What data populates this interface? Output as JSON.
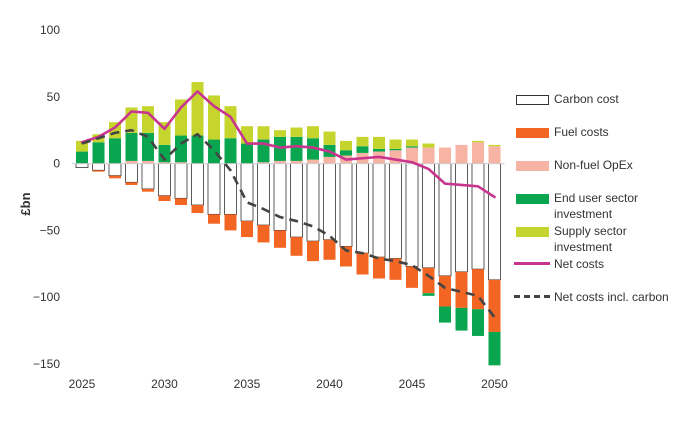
{
  "chart_data": {
    "type": "bar",
    "stacked": true,
    "ylabel": "£bn",
    "ylim": [
      -150,
      100
    ],
    "yticks": [
      100,
      50,
      0,
      -50,
      -100,
      -150
    ],
    "yticklabels": [
      "100",
      "50",
      "0",
      "−50",
      "−100",
      "−150"
    ],
    "xticks": [
      2025,
      2030,
      2035,
      2040,
      2045,
      2050
    ],
    "xticklabels": [
      "2025",
      "2030",
      "2035",
      "2040",
      "2045",
      "2050"
    ],
    "x": [
      2025,
      2026,
      2027,
      2028,
      2029,
      2030,
      2031,
      2032,
      2033,
      2034,
      2035,
      2036,
      2037,
      2038,
      2039,
      2040,
      2041,
      2042,
      2043,
      2044,
      2045,
      2046,
      2047,
      2048,
      2049,
      2050
    ],
    "grid": false,
    "legend_position": "right",
    "series": [
      {
        "name": "Carbon cost",
        "kind": "bar",
        "color": "#ffffff",
        "stroke": "#333333",
        "values": [
          -3,
          -5,
          -9,
          -14,
          -19,
          -24,
          -26,
          -31,
          -38,
          -38,
          -43,
          -46,
          -50,
          -55,
          -58,
          -57,
          -62,
          -67,
          -70,
          -71,
          -77,
          -78,
          -84,
          -81,
          -79,
          -87
        ]
      },
      {
        "name": "Fuel costs",
        "kind": "bar",
        "color": "#f26522",
        "values": [
          0,
          -1,
          -2,
          -2,
          -2,
          -4,
          -5,
          -6,
          -7,
          -12,
          -12,
          -13,
          -13,
          -14,
          -15,
          -15,
          -15,
          -16,
          -16,
          -16,
          -16,
          -19,
          -23,
          -27,
          -30,
          -39
        ]
      },
      {
        "name": "Non-fuel OpEx",
        "kind": "bar",
        "color": "#f7b3a3",
        "values": [
          0,
          0,
          0,
          2,
          2,
          1,
          1,
          0,
          0,
          0,
          0,
          1,
          2,
          2,
          3,
          5,
          6,
          8,
          9,
          10,
          12,
          12,
          12,
          14,
          16,
          13
        ]
      },
      {
        "name": "End user sector investment",
        "kind": "bar",
        "color": "#0aa54f",
        "values": [
          9,
          16,
          19,
          21,
          21,
          13,
          20,
          21,
          18,
          19,
          15,
          17,
          18,
          18,
          16,
          9,
          4,
          5,
          2,
          1,
          1,
          -2,
          -12,
          -17,
          -20,
          -25
        ]
      },
      {
        "name": "Supply sector investment",
        "kind": "bar",
        "color": "#c5d52e",
        "values": [
          8,
          6,
          12,
          19,
          20,
          17,
          27,
          40,
          33,
          24,
          13,
          10,
          5,
          7,
          9,
          10,
          7,
          7,
          9,
          7,
          5,
          3,
          0,
          0,
          1,
          1
        ]
      },
      {
        "name": "Net costs",
        "kind": "line",
        "color": "#c8358e",
        "values": [
          16,
          20,
          27,
          39,
          38,
          26,
          42,
          54,
          43,
          35,
          15,
          15,
          12,
          13,
          12,
          9,
          3,
          4,
          5,
          3,
          1,
          -4,
          -15,
          -16,
          -17,
          -25
        ]
      },
      {
        "name": "Net costs incl. carbon",
        "kind": "line",
        "dashed": true,
        "color": "#444444",
        "values": [
          15,
          19,
          23,
          25,
          20,
          3,
          15,
          22,
          10,
          -5,
          -29,
          -34,
          -40,
          -43,
          -47,
          -54,
          -65,
          -67,
          -71,
          -73,
          -76,
          -84,
          -93,
          -96,
          -99,
          -115
        ]
      }
    ]
  },
  "legend": {
    "items": [
      {
        "label": "Carbon cost"
      },
      {
        "label": "Fuel costs"
      },
      {
        "label": "Non-fuel OpEx"
      },
      {
        "label": "End user sector investment"
      },
      {
        "label": "Supply sector investment"
      },
      {
        "label": "Net costs"
      },
      {
        "label": "Net costs incl. carbon"
      }
    ]
  }
}
